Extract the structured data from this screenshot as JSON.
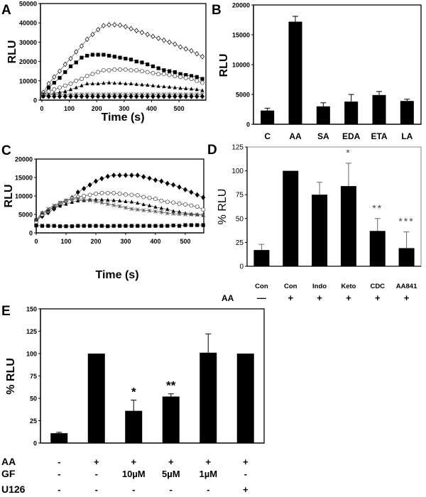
{
  "chart_data": [
    {
      "panel": "A",
      "type": "line",
      "xlabel": "Time (s)",
      "ylabel": "RLU",
      "xlim": [
        -5,
        598
      ],
      "ylim": [
        0,
        50000
      ],
      "xticks": [
        0,
        100,
        200,
        300,
        400,
        500
      ],
      "yticks": [
        0,
        10000,
        20000,
        30000,
        40000,
        50000
      ],
      "x": [
        5,
        25,
        45,
        65,
        85,
        105,
        125,
        145,
        165,
        185,
        205,
        225,
        245,
        265,
        285,
        305,
        325,
        345,
        365,
        385,
        405,
        425,
        445,
        465,
        485,
        505,
        525,
        545,
        565,
        585
      ],
      "series": [
        {
          "marker": "diamond-open",
          "values": [
            4000,
            8500,
            12000,
            15000,
            18500,
            21500,
            25000,
            28000,
            31500,
            34000,
            36500,
            38500,
            39000,
            39000,
            38800,
            38000,
            37000,
            36000,
            35000,
            34000,
            33000,
            32000,
            31000,
            30000,
            29000,
            27500,
            26500,
            25500,
            24000,
            22500
          ]
        },
        {
          "marker": "square-filled",
          "values": [
            3000,
            6500,
            9000,
            11500,
            14500,
            17500,
            19500,
            22000,
            23000,
            23500,
            23500,
            23500,
            23000,
            22500,
            22000,
            21500,
            21000,
            20000,
            19500,
            18500,
            17500,
            16500,
            15500,
            15000,
            14500,
            13500,
            13000,
            12500,
            12000,
            11000
          ]
        },
        {
          "marker": "circle-open",
          "values": [
            2500,
            4500,
            5500,
            6500,
            7500,
            8500,
            10000,
            11000,
            12500,
            13500,
            14500,
            15500,
            15500,
            15800,
            15800,
            15800,
            15500,
            15500,
            15000,
            14500,
            14000,
            13500,
            13500,
            13000,
            12500,
            12000,
            11500,
            11000,
            10000,
            9000
          ]
        },
        {
          "marker": "triangle-filled",
          "values": [
            2000,
            2800,
            3500,
            4000,
            4500,
            5500,
            6500,
            7500,
            8500,
            8500,
            8500,
            8800,
            9000,
            8800,
            8800,
            8500,
            8500,
            8200,
            8000,
            7800,
            7500,
            7200,
            7000,
            6800,
            6500,
            6200,
            6000,
            5800,
            5500,
            5000
          ]
        },
        {
          "marker": "star",
          "values": [
            3200,
            3000,
            3000,
            2900,
            2900,
            2900,
            3000,
            3000,
            3000,
            3000,
            3000,
            3000,
            3000,
            3000,
            3000,
            3000,
            3000,
            3000,
            3000,
            3000,
            3000,
            3000,
            3000,
            3000,
            3000,
            3000,
            3000,
            3000,
            3000,
            3000
          ]
        },
        {
          "marker": "diamond-filled",
          "values": [
            2000,
            1900,
            1900,
            1900,
            1900,
            1900,
            1900,
            1900,
            1900,
            1900,
            1900,
            1900,
            1900,
            1900,
            1900,
            1900,
            1900,
            1900,
            1900,
            1900,
            1900,
            1900,
            1900,
            1900,
            1900,
            1900,
            1900,
            1900,
            1900,
            1900
          ]
        }
      ]
    },
    {
      "panel": "B",
      "type": "bar",
      "ylabel": "RLU",
      "ylim": [
        0,
        20000
      ],
      "yticks": [
        0,
        5000,
        10000,
        15000,
        20000
      ],
      "categories": [
        "C",
        "AA",
        "SA",
        "EDA",
        "ETA",
        "LA"
      ],
      "values": [
        2300,
        17200,
        3000,
        3800,
        4900,
        3900
      ],
      "errors": [
        400,
        900,
        600,
        1200,
        600,
        300
      ]
    },
    {
      "panel": "C",
      "type": "line",
      "xlabel": "Time (s)",
      "ylabel": "RLU",
      "xlim": [
        0,
        562
      ],
      "ylim": [
        0,
        20000
      ],
      "xticks": [
        0,
        100,
        200,
        300,
        400,
        500
      ],
      "yticks": [
        0,
        5000,
        10000,
        15000,
        20000
      ],
      "x": [
        0,
        20,
        40,
        60,
        80,
        100,
        120,
        140,
        160,
        180,
        200,
        220,
        240,
        260,
        280,
        300,
        320,
        340,
        360,
        380,
        400,
        420,
        440,
        460,
        480,
        500,
        520,
        540,
        560
      ],
      "series": [
        {
          "marker": "diamond-filled",
          "values": [
            3500,
            4500,
            5500,
            6500,
            7500,
            8500,
            9500,
            11000,
            12000,
            13000,
            14000,
            14700,
            15300,
            15600,
            15600,
            15600,
            15600,
            15600,
            15200,
            14800,
            14300,
            14000,
            13400,
            13000,
            12400,
            11700,
            11000,
            10300,
            9600
          ]
        },
        {
          "marker": "circle-open",
          "values": [
            3000,
            5000,
            6000,
            7000,
            8000,
            8700,
            9300,
            9700,
            10000,
            10300,
            10600,
            10800,
            10800,
            10800,
            10600,
            10400,
            10300,
            10200,
            9700,
            9500,
            9200,
            8700,
            8400,
            8200,
            7900,
            7700,
            7400,
            7100,
            6300
          ]
        },
        {
          "marker": "triangle-filled",
          "values": [
            3500,
            5500,
            6200,
            7000,
            7300,
            7800,
            8300,
            8700,
            8800,
            9000,
            9000,
            9000,
            8900,
            8800,
            8700,
            8500,
            8400,
            8100,
            7700,
            7400,
            7000,
            6700,
            6400,
            5900,
            5700,
            5300,
            5100,
            5000,
            4800
          ]
        },
        {
          "marker": "star",
          "values": [
            3500,
            5300,
            6500,
            7400,
            8200,
            8800,
            9100,
            9300,
            9000,
            8800,
            8500,
            8200,
            7800,
            7500,
            7200,
            6800,
            6500,
            6300,
            6100,
            6000,
            5800,
            5600,
            5300,
            5200,
            5100,
            5000,
            5000,
            4900,
            4800
          ]
        },
        {
          "marker": "square-filled",
          "values": [
            2000,
            1900,
            1900,
            1900,
            1800,
            1800,
            1800,
            1900,
            1900,
            1900,
            1900,
            1900,
            1800,
            1900,
            1900,
            1900,
            1900,
            1900,
            1900,
            1900,
            1900,
            1900,
            1900,
            2000,
            1900,
            2100,
            2100,
            2100,
            2100
          ]
        }
      ]
    },
    {
      "panel": "D",
      "type": "bar",
      "ylabel": "% RLU",
      "ylim": [
        0,
        125
      ],
      "yticks": [
        0,
        25,
        50,
        75,
        100,
        125
      ],
      "categories": [
        "Con",
        "Con",
        "Indo",
        "Keto",
        "CDC",
        "AA841"
      ],
      "values": [
        17,
        100,
        75,
        84,
        37,
        19
      ],
      "errors": [
        6,
        0,
        13,
        24,
        13,
        17
      ],
      "significance": [
        "",
        "",
        "",
        "*",
        "**",
        "***"
      ],
      "conditions": [
        {
          "label": "AA",
          "values": [
            "—",
            "+",
            "+",
            "+",
            "+",
            "+"
          ]
        }
      ]
    },
    {
      "panel": "E",
      "type": "bar",
      "ylabel": "% RLU",
      "ylim": [
        0,
        150
      ],
      "yticks": [
        0,
        25,
        50,
        75,
        100,
        125,
        150
      ],
      "categories": [
        "",
        "",
        "",
        "",
        "",
        ""
      ],
      "values": [
        11,
        100,
        36,
        52,
        101,
        100
      ],
      "errors": [
        1,
        0,
        12,
        3,
        21,
        0
      ],
      "significance": [
        "",
        "",
        "*",
        "**",
        "",
        ""
      ],
      "conditions": [
        {
          "label": "AA",
          "values": [
            "-",
            "+",
            "+",
            "+",
            "+",
            "+"
          ]
        },
        {
          "label": "GF",
          "values": [
            "-",
            "-",
            "10µM",
            "5µM",
            "1µM",
            "-"
          ]
        },
        {
          "label": "U126",
          "values": [
            "-",
            "-",
            "-",
            "-",
            "-",
            "+"
          ]
        }
      ]
    }
  ]
}
